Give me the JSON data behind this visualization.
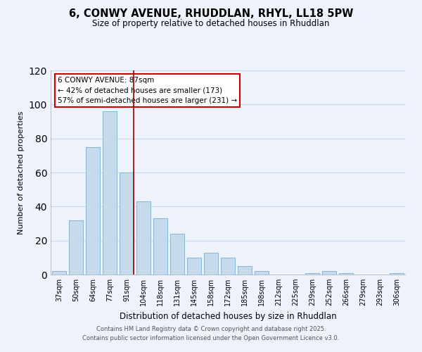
{
  "title": "6, CONWY AVENUE, RHUDDLAN, RHYL, LL18 5PW",
  "subtitle": "Size of property relative to detached houses in Rhuddlan",
  "xlabel": "Distribution of detached houses by size in Rhuddlan",
  "ylabel": "Number of detached properties",
  "bar_labels": [
    "37sqm",
    "50sqm",
    "64sqm",
    "77sqm",
    "91sqm",
    "104sqm",
    "118sqm",
    "131sqm",
    "145sqm",
    "158sqm",
    "172sqm",
    "185sqm",
    "198sqm",
    "212sqm",
    "225sqm",
    "239sqm",
    "252sqm",
    "266sqm",
    "279sqm",
    "293sqm",
    "306sqm"
  ],
  "bar_values": [
    2,
    32,
    75,
    96,
    60,
    43,
    33,
    24,
    10,
    13,
    10,
    5,
    2,
    0,
    0,
    1,
    2,
    1,
    0,
    0,
    1
  ],
  "bar_color": "#c5daea",
  "bar_edge_color": "#8ab4d4",
  "vline_color": "#990000",
  "annotation_title": "6 CONWY AVENUE: 87sqm",
  "annotation_line1": "← 42% of detached houses are smaller (173)",
  "annotation_line2": "57% of semi-detached houses are larger (231) →",
  "annotation_box_color": "#ffffff",
  "annotation_box_edge": "#cc0000",
  "ylim": [
    0,
    120
  ],
  "yticks": [
    0,
    20,
    40,
    60,
    80,
    100,
    120
  ],
  "grid_color": "#c8d8ec",
  "background_color": "#eef2fb",
  "footer1": "Contains HM Land Registry data © Crown copyright and database right 2025.",
  "footer2": "Contains public sector information licensed under the Open Government Licence v3.0."
}
